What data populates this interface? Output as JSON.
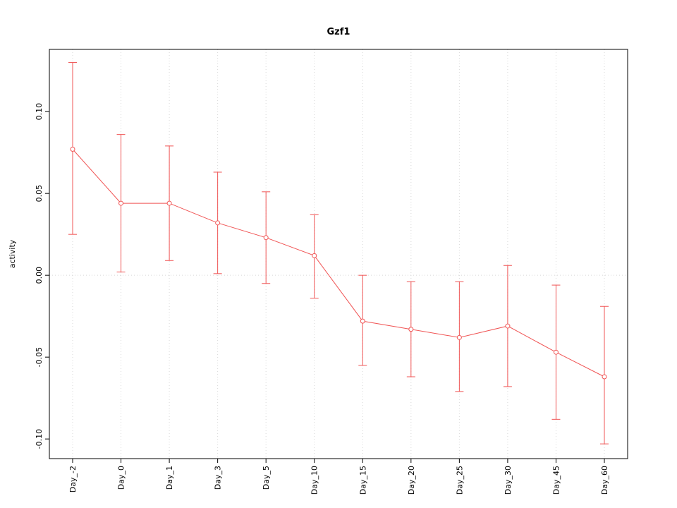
{
  "chart_data": {
    "type": "line",
    "title": "Gzf1",
    "xlabel": "",
    "ylabel": "activity",
    "categories": [
      "Day_-2",
      "Day_0",
      "Day_1",
      "Day_3",
      "Day_5",
      "Day_10",
      "Day_15",
      "Day_20",
      "Day_25",
      "Day_30",
      "Day_45",
      "Day_60"
    ],
    "series": [
      {
        "name": "Gzf1 activity",
        "values": [
          0.077,
          0.044,
          0.044,
          0.032,
          0.023,
          0.012,
          -0.028,
          -0.033,
          -0.038,
          -0.031,
          -0.047,
          -0.062
        ],
        "upper": [
          0.13,
          0.086,
          0.079,
          0.063,
          0.051,
          0.037,
          0.0,
          -0.004,
          -0.004,
          0.006,
          -0.006,
          -0.019
        ],
        "lower": [
          0.025,
          0.002,
          0.009,
          0.001,
          -0.005,
          -0.014,
          -0.055,
          -0.062,
          -0.071,
          -0.068,
          -0.088,
          -0.103
        ]
      }
    ],
    "yticks": [
      -0.1,
      -0.05,
      0.0,
      0.05,
      0.1
    ],
    "ylim": [
      -0.112,
      0.138
    ],
    "grid": {
      "vertical": "dotted line at each category",
      "horizontal": "dotted line at y = 0"
    },
    "error_bars": true,
    "point_style": "open-circle",
    "legend_position": "none",
    "colors": {
      "series": "#f05454",
      "grid": "#d8d8d8",
      "axis": "#000000",
      "background": "#ffffff"
    }
  }
}
